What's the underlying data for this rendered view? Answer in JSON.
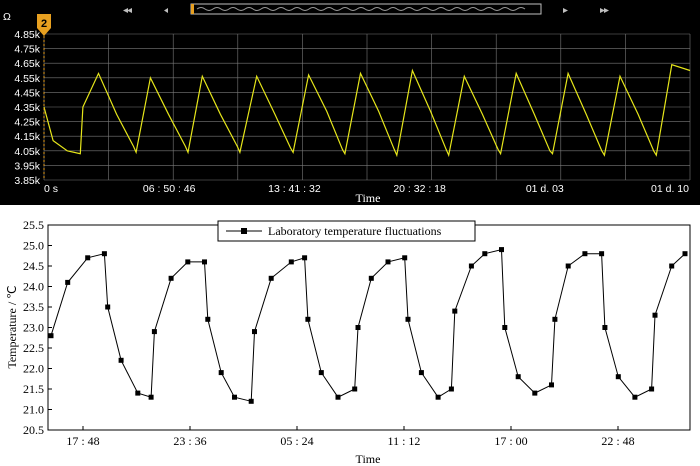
{
  "chart_data": [
    {
      "type": "line",
      "ylabel": "Ω",
      "xlabel": "Time",
      "marker_label": "2",
      "ylim": [
        3.85,
        4.85
      ],
      "y_ticks": [
        "4.85k",
        "4.75k",
        "4.65k",
        "4.55k",
        "4.45k",
        "4.35k",
        "4.25k",
        "4.15k",
        "4.05k",
        "3.95k",
        "3.85k"
      ],
      "x_ticks": [
        "0 s",
        "06 : 50 : 46",
        "13 : 41 : 32",
        "20 : 32 : 18",
        "01 d. 03",
        "01 d. 10"
      ],
      "grid": true,
      "colors": {
        "background": "#000000",
        "line": "#e6e61a",
        "grid": "#7a7a7a",
        "marker": "#e8a020"
      },
      "series": [
        {
          "x": [
            0,
            0.35,
            0.9,
            1.4,
            1.5,
            2.1,
            2.8,
            3.45,
            3.55,
            4.1,
            4.8,
            5.45,
            5.55,
            6.1,
            6.8,
            7.45,
            7.55,
            8.2,
            8.9,
            9.5,
            9.6,
            10.2,
            10.9,
            11.5,
            11.6,
            12.2,
            12.9,
            13.5,
            13.6,
            14.2,
            14.9,
            15.5,
            15.6,
            16.2,
            16.9,
            17.5,
            17.6,
            18.2,
            18.9,
            19.5,
            19.6,
            20.2,
            20.9,
            21.5,
            21.6,
            22.2,
            22.9,
            23.5,
            23.6,
            24.2,
            24.9
          ],
          "values": [
            4.35,
            4.12,
            4.05,
            4.03,
            4.35,
            4.58,
            4.3,
            4.08,
            4.04,
            4.55,
            4.3,
            4.08,
            4.04,
            4.56,
            4.3,
            4.08,
            4.04,
            4.56,
            4.3,
            4.07,
            4.04,
            4.57,
            4.32,
            4.06,
            4.03,
            4.58,
            4.32,
            4.06,
            4.02,
            4.6,
            4.32,
            4.06,
            4.02,
            4.56,
            4.3,
            4.06,
            4.03,
            4.58,
            4.3,
            4.05,
            4.03,
            4.58,
            4.3,
            4.05,
            4.02,
            4.56,
            4.3,
            4.05,
            4.02,
            4.64,
            4.6
          ]
        }
      ]
    },
    {
      "type": "line",
      "legend": "Laboratory temperature fluctuations",
      "legend_position": "top-center",
      "ylabel": "Temperature / ℃",
      "xlabel": "Time",
      "ylim": [
        20.5,
        25.5
      ],
      "y_ticks": [
        "25.5",
        "25.0",
        "24.5",
        "24.0",
        "23.5",
        "23.0",
        "22.5",
        "22.0",
        "21.5",
        "21.0",
        "20.5"
      ],
      "x_ticks": [
        "17 : 48",
        "23 : 36",
        "05 : 24",
        "11 : 12",
        "17 : 00",
        "22 : 48"
      ],
      "grid": false,
      "colors": {
        "background": "#ffffff",
        "line": "#000000"
      },
      "series": [
        {
          "name": "Laboratory temperature fluctuations",
          "x": [
            0,
            0.5,
            1.1,
            1.6,
            1.7,
            2.1,
            2.6,
            3.0,
            3.1,
            3.6,
            4.1,
            4.6,
            4.7,
            5.1,
            5.5,
            6.0,
            6.1,
            6.6,
            7.2,
            7.6,
            7.7,
            8.1,
            8.6,
            9.1,
            9.2,
            9.6,
            10.1,
            10.6,
            10.7,
            11.1,
            11.6,
            12.0,
            12.1,
            12.6,
            13.0,
            13.5,
            13.6,
            14.0,
            14.5,
            15.0,
            15.1,
            15.5,
            16.0,
            16.5,
            16.6,
            17.0,
            17.5,
            18.0,
            18.1,
            18.6,
            19.0
          ],
          "values": [
            22.8,
            24.1,
            24.7,
            24.8,
            23.5,
            22.2,
            21.4,
            21.3,
            22.9,
            24.2,
            24.6,
            24.6,
            23.2,
            21.9,
            21.3,
            21.2,
            22.9,
            24.2,
            24.6,
            24.7,
            23.2,
            21.9,
            21.3,
            21.5,
            23.0,
            24.2,
            24.6,
            24.7,
            23.2,
            21.9,
            21.3,
            21.5,
            23.4,
            24.5,
            24.8,
            24.9,
            23.0,
            21.8,
            21.4,
            21.6,
            23.2,
            24.5,
            24.8,
            24.8,
            23.0,
            21.8,
            21.3,
            21.5,
            23.3,
            24.5,
            24.8
          ]
        }
      ]
    }
  ]
}
